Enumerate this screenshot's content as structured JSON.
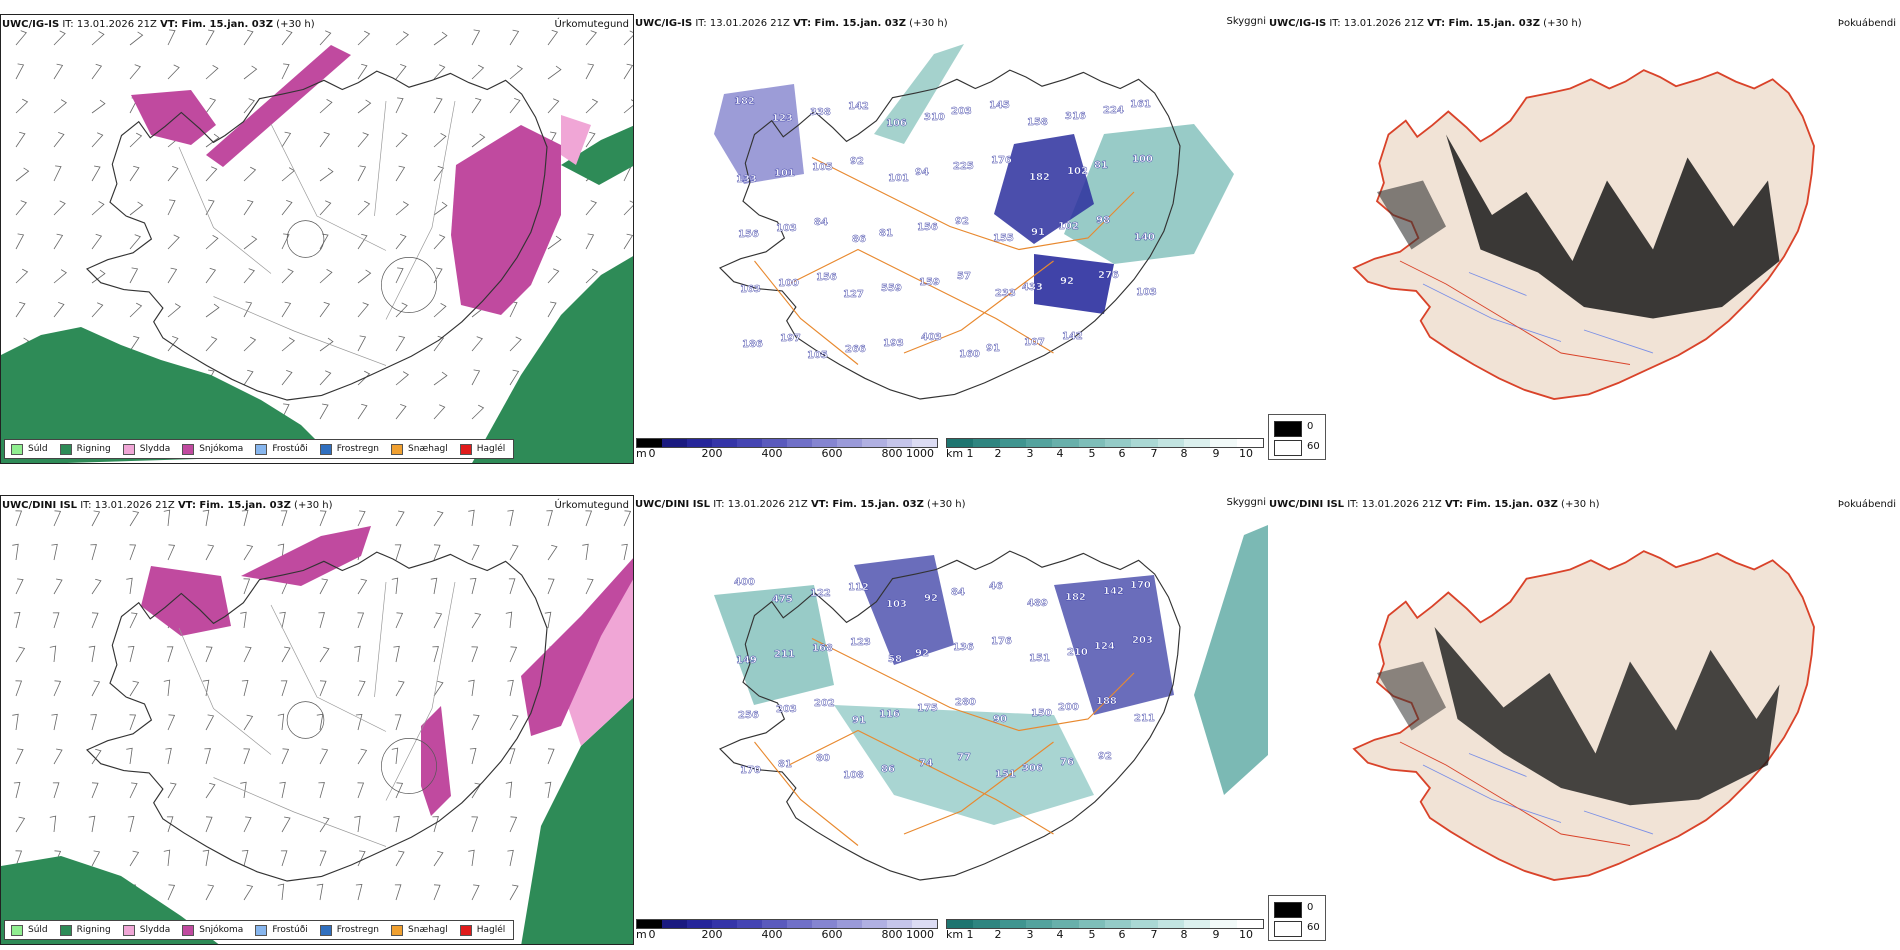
{
  "colors": {
    "land_outline": "#333333",
    "orange_roads": "#e8892f",
    "vis_blue": "#2b2f9e",
    "vis_teal": "#2f8f86",
    "snow": "#c04a9f",
    "rain": "#2e8b57",
    "sleet": "#f0a6d6",
    "land_beige": "#f1e3d6",
    "coast_red": "#d9432a",
    "river_blue": "#7a8fe6"
  },
  "rows": [
    {
      "model_label": "UWC/IG-IS",
      "ptype": {
        "header": {
          "model": "UWC/IG-IS",
          "it_label": "IT:",
          "it_value": "13.01.2026 21Z",
          "vt_label": "VT: Fim. 15.jan. 03Z",
          "lead": "(+30 h)"
        },
        "title": "Úrkomutegund"
      },
      "vis": {
        "header": {
          "model": "UWC/IG-IS",
          "it_label": "IT:",
          "it_value": "13.01.2026 21Z",
          "vt_label": "VT: Fim. 15.jan. 03Z",
          "lead": "(+30 h)"
        },
        "title": "Skyggni",
        "labels": [
          "182",
          "123",
          "338",
          "142",
          "106",
          "310",
          "203",
          "145",
          "158",
          "316",
          "224",
          "161",
          "133",
          "101",
          "105",
          "92",
          "101",
          "94",
          "225",
          "176",
          "182",
          "102",
          "81",
          "100",
          "156",
          "103",
          "84",
          "86",
          "81",
          "156",
          "92",
          "155",
          "91",
          "102",
          "98",
          "140",
          "163",
          "100",
          "156",
          "127",
          "559",
          "159",
          "57",
          "233",
          "433",
          "92",
          "276",
          "103",
          "186",
          "197",
          "105",
          "266",
          "193",
          "403",
          "160",
          "91",
          "107",
          "142"
        ]
      },
      "cloud": {
        "header": {
          "model": "UWC/IG-IS",
          "it_label": "IT:",
          "it_value": "13.01.2026 21Z",
          "vt_label": "VT: Fim. 15.jan. 03Z",
          "lead": "(+30 h)"
        },
        "title": "Þokuábendi"
      }
    },
    {
      "model_label": "UWC/DINI ISL",
      "ptype": {
        "header": {
          "model": "UWC/DINI ISL",
          "it_label": "IT:",
          "it_value": "13.01.2026 21Z",
          "vt_label": "VT: Fim. 15.jan. 03Z",
          "lead": "(+30 h)"
        },
        "title": "Úrkomutegund"
      },
      "vis": {
        "header": {
          "model": "UWC/DINI ISL",
          "it_label": "IT:",
          "it_value": "13.01.2026 21Z",
          "vt_label": "VT: Fim. 15.jan. 03Z",
          "lead": "(+30 h)"
        },
        "title": "Skyggni",
        "labels": [
          "400",
          "475",
          "122",
          "112",
          "103",
          "92",
          "84",
          "46",
          "489",
          "182",
          "142",
          "170",
          "149",
          "211",
          "168",
          "123",
          "58",
          "92",
          "136",
          "176",
          "151",
          "210",
          "124",
          "203",
          "256",
          "203",
          "202",
          "91",
          "116",
          "175",
          "280",
          "90",
          "150",
          "200",
          "188",
          "211",
          "170",
          "81",
          "80",
          "108",
          "86",
          "74",
          "77",
          "151",
          "306",
          "76",
          "92"
        ]
      },
      "cloud": {
        "header": {
          "model": "UWC/DINI ISL",
          "it_label": "IT:",
          "it_value": "13.01.2026 21Z",
          "vt_label": "VT: Fim. 15.jan. 03Z",
          "lead": "(+30 h)"
        },
        "title": "Þokuábendi"
      }
    }
  ],
  "ptype_legend": [
    {
      "label": "Súld",
      "color": "#90ee90"
    },
    {
      "label": "Rigning",
      "color": "#2e8b57"
    },
    {
      "label": "Slydda",
      "color": "#f0a6d6"
    },
    {
      "label": "Snjókoma",
      "color": "#c04a9f"
    },
    {
      "label": "Frostúði",
      "color": "#87b6ee"
    },
    {
      "label": "Frostregn",
      "color": "#2f6fbf"
    },
    {
      "label": "Snæhagl",
      "color": "#f0a030"
    },
    {
      "label": "Haglél",
      "color": "#e01b1b"
    }
  ],
  "vis_colorbar_m": {
    "unit": "m",
    "ticks": [
      "0",
      "200",
      "400",
      "600",
      "800",
      "1000"
    ],
    "colors": [
      "#000000",
      "#1a1a80",
      "#26269a",
      "#3535a8",
      "#4545b3",
      "#5a5abd",
      "#7070c8",
      "#8585d1",
      "#9a9ad9",
      "#b0b0e2",
      "#c5c5ea",
      "#dcdcf3"
    ]
  },
  "vis_colorbar_km": {
    "unit": "km",
    "ticks": [
      "1",
      "2",
      "3",
      "4",
      "5",
      "6",
      "7",
      "8",
      "9",
      "10"
    ],
    "colors": [
      "#1e7570",
      "#2f8580",
      "#409590",
      "#54a39e",
      "#68b0ab",
      "#7ebeb9",
      "#94cbc7",
      "#aad8d4",
      "#c2e4e1",
      "#dbf0ee",
      "#f2faf9",
      "#ffffff"
    ]
  },
  "fog_legend": {
    "items": [
      {
        "label": "0",
        "color": "#000000"
      },
      {
        "label": "60",
        "color": "#ffffff"
      }
    ]
  }
}
